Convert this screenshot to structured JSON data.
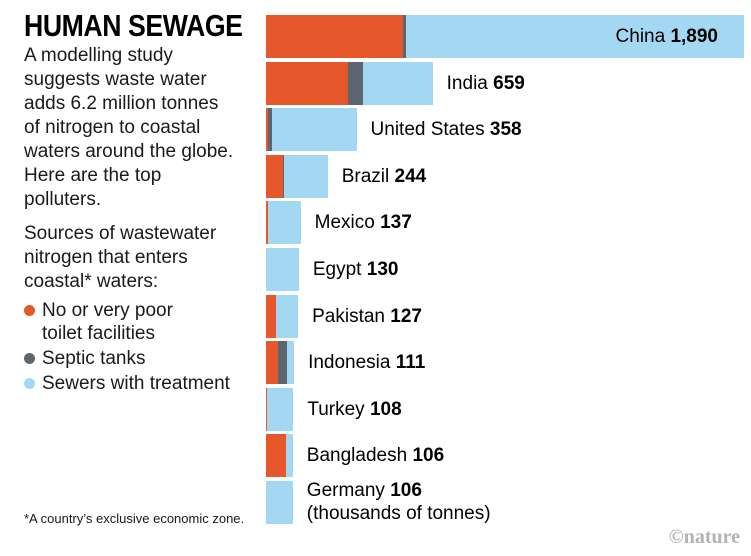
{
  "header": {
    "title": "HUMAN SEWAGE",
    "description": "A modelling study\nsuggests waste water\nadds 6.2 million tonnes\nof nitrogen to coastal\nwaters around the globe.\nHere are the top\npolluters."
  },
  "legend": {
    "title": "Sources of wastewater\nnitrogen that enters\ncoastal* waters:",
    "items": [
      {
        "label": "No or very poor\ntoilet facilities",
        "color": "#E6572B",
        "name": "legend-item-toilet"
      },
      {
        "label": "Septic tanks",
        "color": "#5C6671",
        "name": "legend-item-septic"
      },
      {
        "label": "Sewers with treatment",
        "color": "#A3D7F2",
        "name": "legend-item-sewers"
      }
    ]
  },
  "footnote": "*A country’s exclusive economic zone.",
  "watermark": "©nature",
  "chart_data": {
    "type": "bar",
    "orientation": "horizontal",
    "title": "HUMAN SEWAGE",
    "unit": "thousands of tonnes",
    "max_value": 1890,
    "legend_position": "left",
    "series_names": [
      "No or very poor toilet facilities",
      "Septic tanks",
      "Sewers with treatment"
    ],
    "colors": {
      "orange": "#E6572B",
      "gray": "#5C6671",
      "blue": "#A3D7F2"
    },
    "rows": [
      {
        "country": "China",
        "total": 1890,
        "display": "1,890",
        "segments": [
          540,
          15,
          1335
        ],
        "label_inside": true
      },
      {
        "country": "India",
        "total": 659,
        "display": "659",
        "segments": [
          325,
          60,
          274
        ]
      },
      {
        "country": "United States",
        "total": 358,
        "display": "358",
        "segments": [
          8,
          17,
          333
        ]
      },
      {
        "country": "Brazil",
        "total": 244,
        "display": "244",
        "segments": [
          66,
          7,
          171
        ]
      },
      {
        "country": "Mexico",
        "total": 137,
        "display": "137",
        "segments": [
          7,
          0,
          130
        ]
      },
      {
        "country": "Egypt",
        "total": 130,
        "display": "130",
        "segments": [
          0,
          0,
          130
        ]
      },
      {
        "country": "Pakistan",
        "total": 127,
        "display": "127",
        "segments": [
          40,
          0,
          87
        ]
      },
      {
        "country": "Indonesia",
        "total": 111,
        "display": "111",
        "segments": [
          47,
          36,
          28
        ]
      },
      {
        "country": "Turkey",
        "total": 108,
        "display": "108",
        "segments": [
          4,
          0,
          104
        ]
      },
      {
        "country": "Bangladesh",
        "total": 106,
        "display": "106",
        "segments": [
          78,
          0,
          28
        ]
      },
      {
        "country": "Germany",
        "total": 106,
        "display": "106",
        "segments": [
          0,
          0,
          106
        ],
        "sublabel": "(thousands of tonnes)"
      }
    ]
  }
}
